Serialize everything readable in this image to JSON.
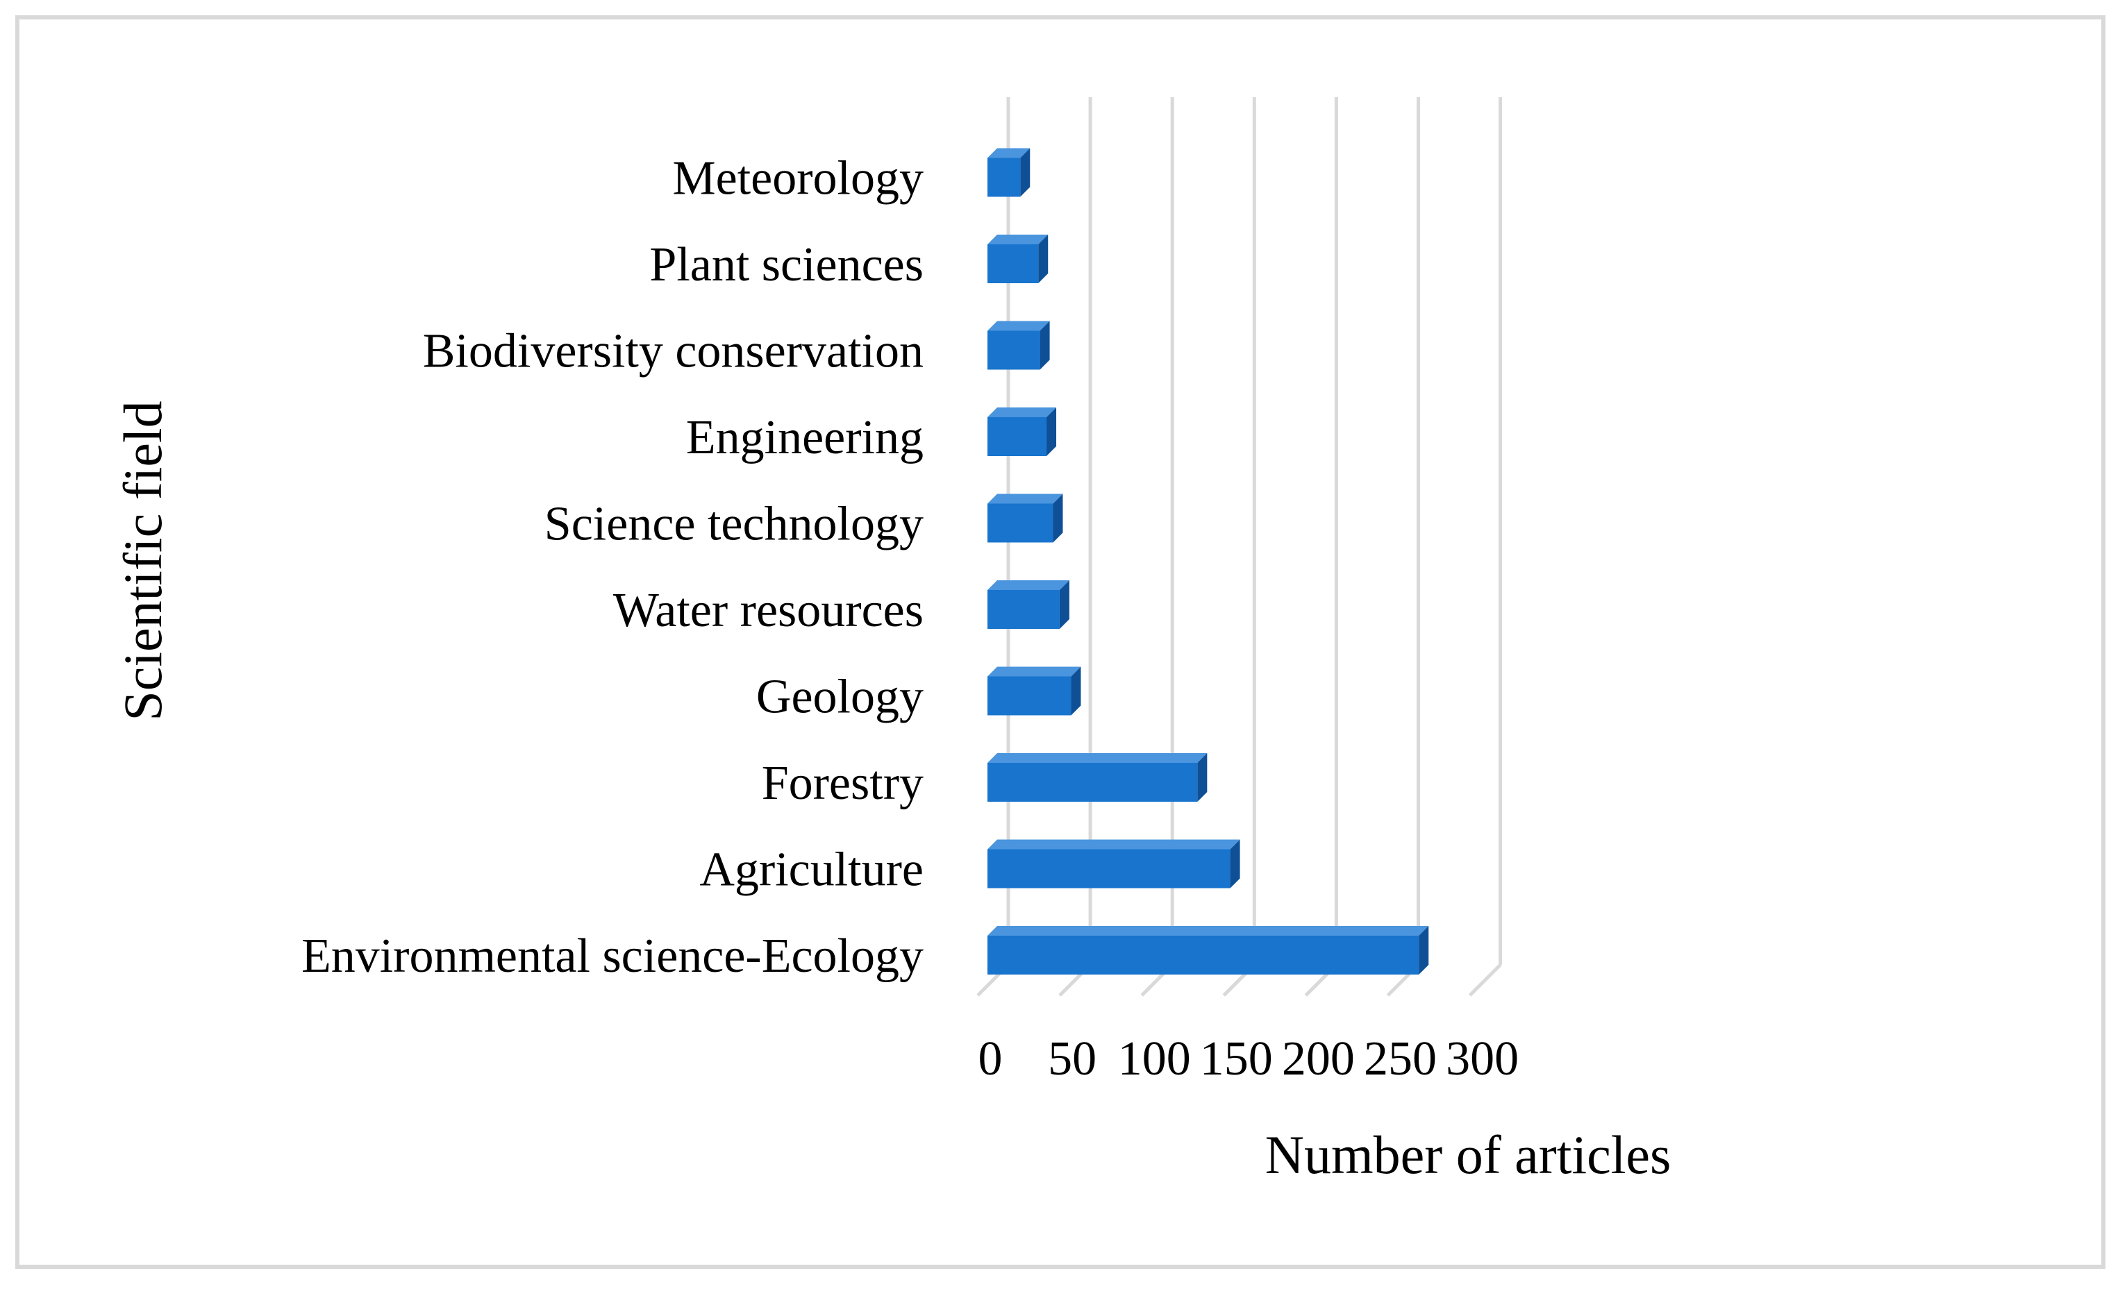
{
  "chart_data": {
    "type": "bar",
    "orientation": "horizontal",
    "style": "3d",
    "categories": [
      "Environmental science-Ecology",
      "Agriculture",
      "Forestry",
      "Geology",
      "Water resources",
      "Science technology",
      "Engineering",
      "Biodiversity conservation",
      "Plant sciences",
      "Meteorology"
    ],
    "values": [
      263,
      148,
      128,
      51,
      44,
      40,
      36,
      32,
      31,
      20
    ],
    "xlabel": "Number of articles",
    "ylabel": "Scientific field",
    "xlim": [
      0,
      300
    ],
    "xticks": [
      "0",
      "50",
      "100",
      "150",
      "200",
      "250",
      "300"
    ],
    "grid": true,
    "legend": "none",
    "colors": {
      "bar_face": "#1874cd",
      "bar_top": "#4a95de",
      "bar_side": "#0e4f96",
      "grid": "#d9d9d9",
      "frame": "#d9d9d9"
    }
  }
}
